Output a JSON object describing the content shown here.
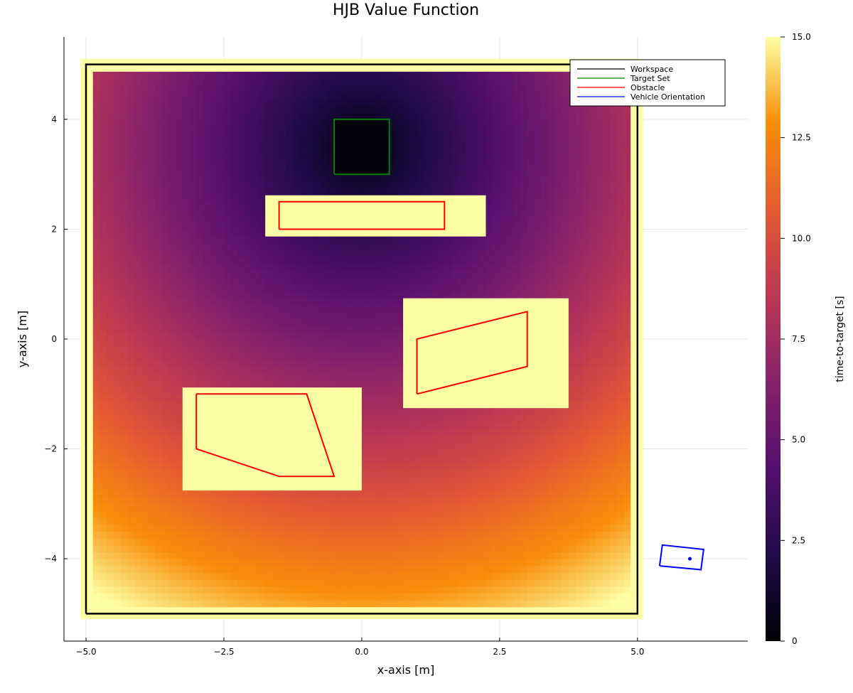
{
  "chart_data": {
    "type": "heatmap",
    "title": "HJB Value Function",
    "xlabel": "x-axis [m]",
    "ylabel": "y-axis [m]",
    "xlim": [
      -5.4,
      7.0
    ],
    "ylim": [
      -5.5,
      5.5
    ],
    "xticks": [
      -5.0,
      -2.5,
      0.0,
      2.5,
      5.0
    ],
    "xtick_labels": [
      "−5.0",
      "−2.5",
      "0.0",
      "2.5",
      "5.0"
    ],
    "yticks": [
      -4,
      -2,
      0,
      2,
      4
    ],
    "ytick_labels": [
      "−4",
      "−2",
      "0",
      "2",
      "4"
    ],
    "grid": true,
    "colorbar": {
      "label": "time-to-target [s]",
      "min": 0,
      "max": 15,
      "ticks": [
        0,
        2.5,
        5.0,
        7.5,
        10.0,
        12.5,
        15.0
      ],
      "tick_labels": [
        "0",
        "2.5",
        "5.0",
        "7.5",
        "10.0",
        "12.5",
        "15.0"
      ]
    },
    "legend": {
      "placement": "top-right",
      "entries": [
        {
          "name": "Workspace",
          "color": "#000000"
        },
        {
          "name": "Target Set",
          "color": "#008000"
        },
        {
          "name": "Obstacle",
          "color": "#ff0000"
        },
        {
          "name": "Vehicle Orientation",
          "color": "#0000ff"
        }
      ]
    },
    "heatmap_extent": {
      "x": [
        -5.0,
        5.0
      ],
      "y": [
        -5.0,
        5.0
      ]
    },
    "target_center": [
      0.0,
      3.5
    ],
    "fill_value_outside": 15,
    "series": [
      {
        "name": "Workspace",
        "color": "#000000",
        "points": [
          [
            -5,
            -5
          ],
          [
            5,
            -5
          ],
          [
            5,
            5
          ],
          [
            -5,
            5
          ],
          [
            -5,
            -5
          ]
        ]
      },
      {
        "name": "Target Set",
        "color": "#008000",
        "points": [
          [
            -0.5,
            3
          ],
          [
            0.5,
            3
          ],
          [
            0.5,
            4
          ],
          [
            -0.5,
            4
          ],
          [
            -0.5,
            3
          ]
        ]
      },
      {
        "name": "Obstacle",
        "color": "#ff0000",
        "shapes": [
          [
            [
              -1.5,
              2
            ],
            [
              1.5,
              2
            ],
            [
              1.5,
              2.5
            ],
            [
              -1.5,
              2.5
            ],
            [
              -1.5,
              2
            ]
          ],
          [
            [
              1,
              -1
            ],
            [
              3,
              -0.5
            ],
            [
              3,
              0.5
            ],
            [
              1,
              0
            ],
            [
              1,
              -1
            ]
          ],
          [
            [
              -3,
              -1
            ],
            [
              -1,
              -1
            ],
            [
              -0.5,
              -2.5
            ],
            [
              -1.5,
              -2.5
            ],
            [
              -3,
              -2
            ],
            [
              -3,
              -1
            ]
          ]
        ]
      },
      {
        "name": "Vehicle Orientation",
        "color": "#0000ff",
        "points": [
          [
            5.4,
            -4.13
          ],
          [
            6.15,
            -4.2
          ],
          [
            6.2,
            -3.83
          ],
          [
            5.45,
            -3.75
          ],
          [
            5.4,
            -4.13
          ]
        ],
        "marker": [
          5.95,
          -4.0
        ]
      }
    ],
    "obstacle_inflation": [
      {
        "x": [
          -1.7,
          2.2
        ],
        "y": [
          1.82,
          2.68
        ]
      },
      {
        "x": [
          0.8,
          3.7
        ],
        "y": [
          -1.2,
          0.7
        ]
      },
      {
        "x": [
          -3.2,
          0.05
        ],
        "y": [
          -2.7,
          -0.82
        ]
      }
    ]
  }
}
